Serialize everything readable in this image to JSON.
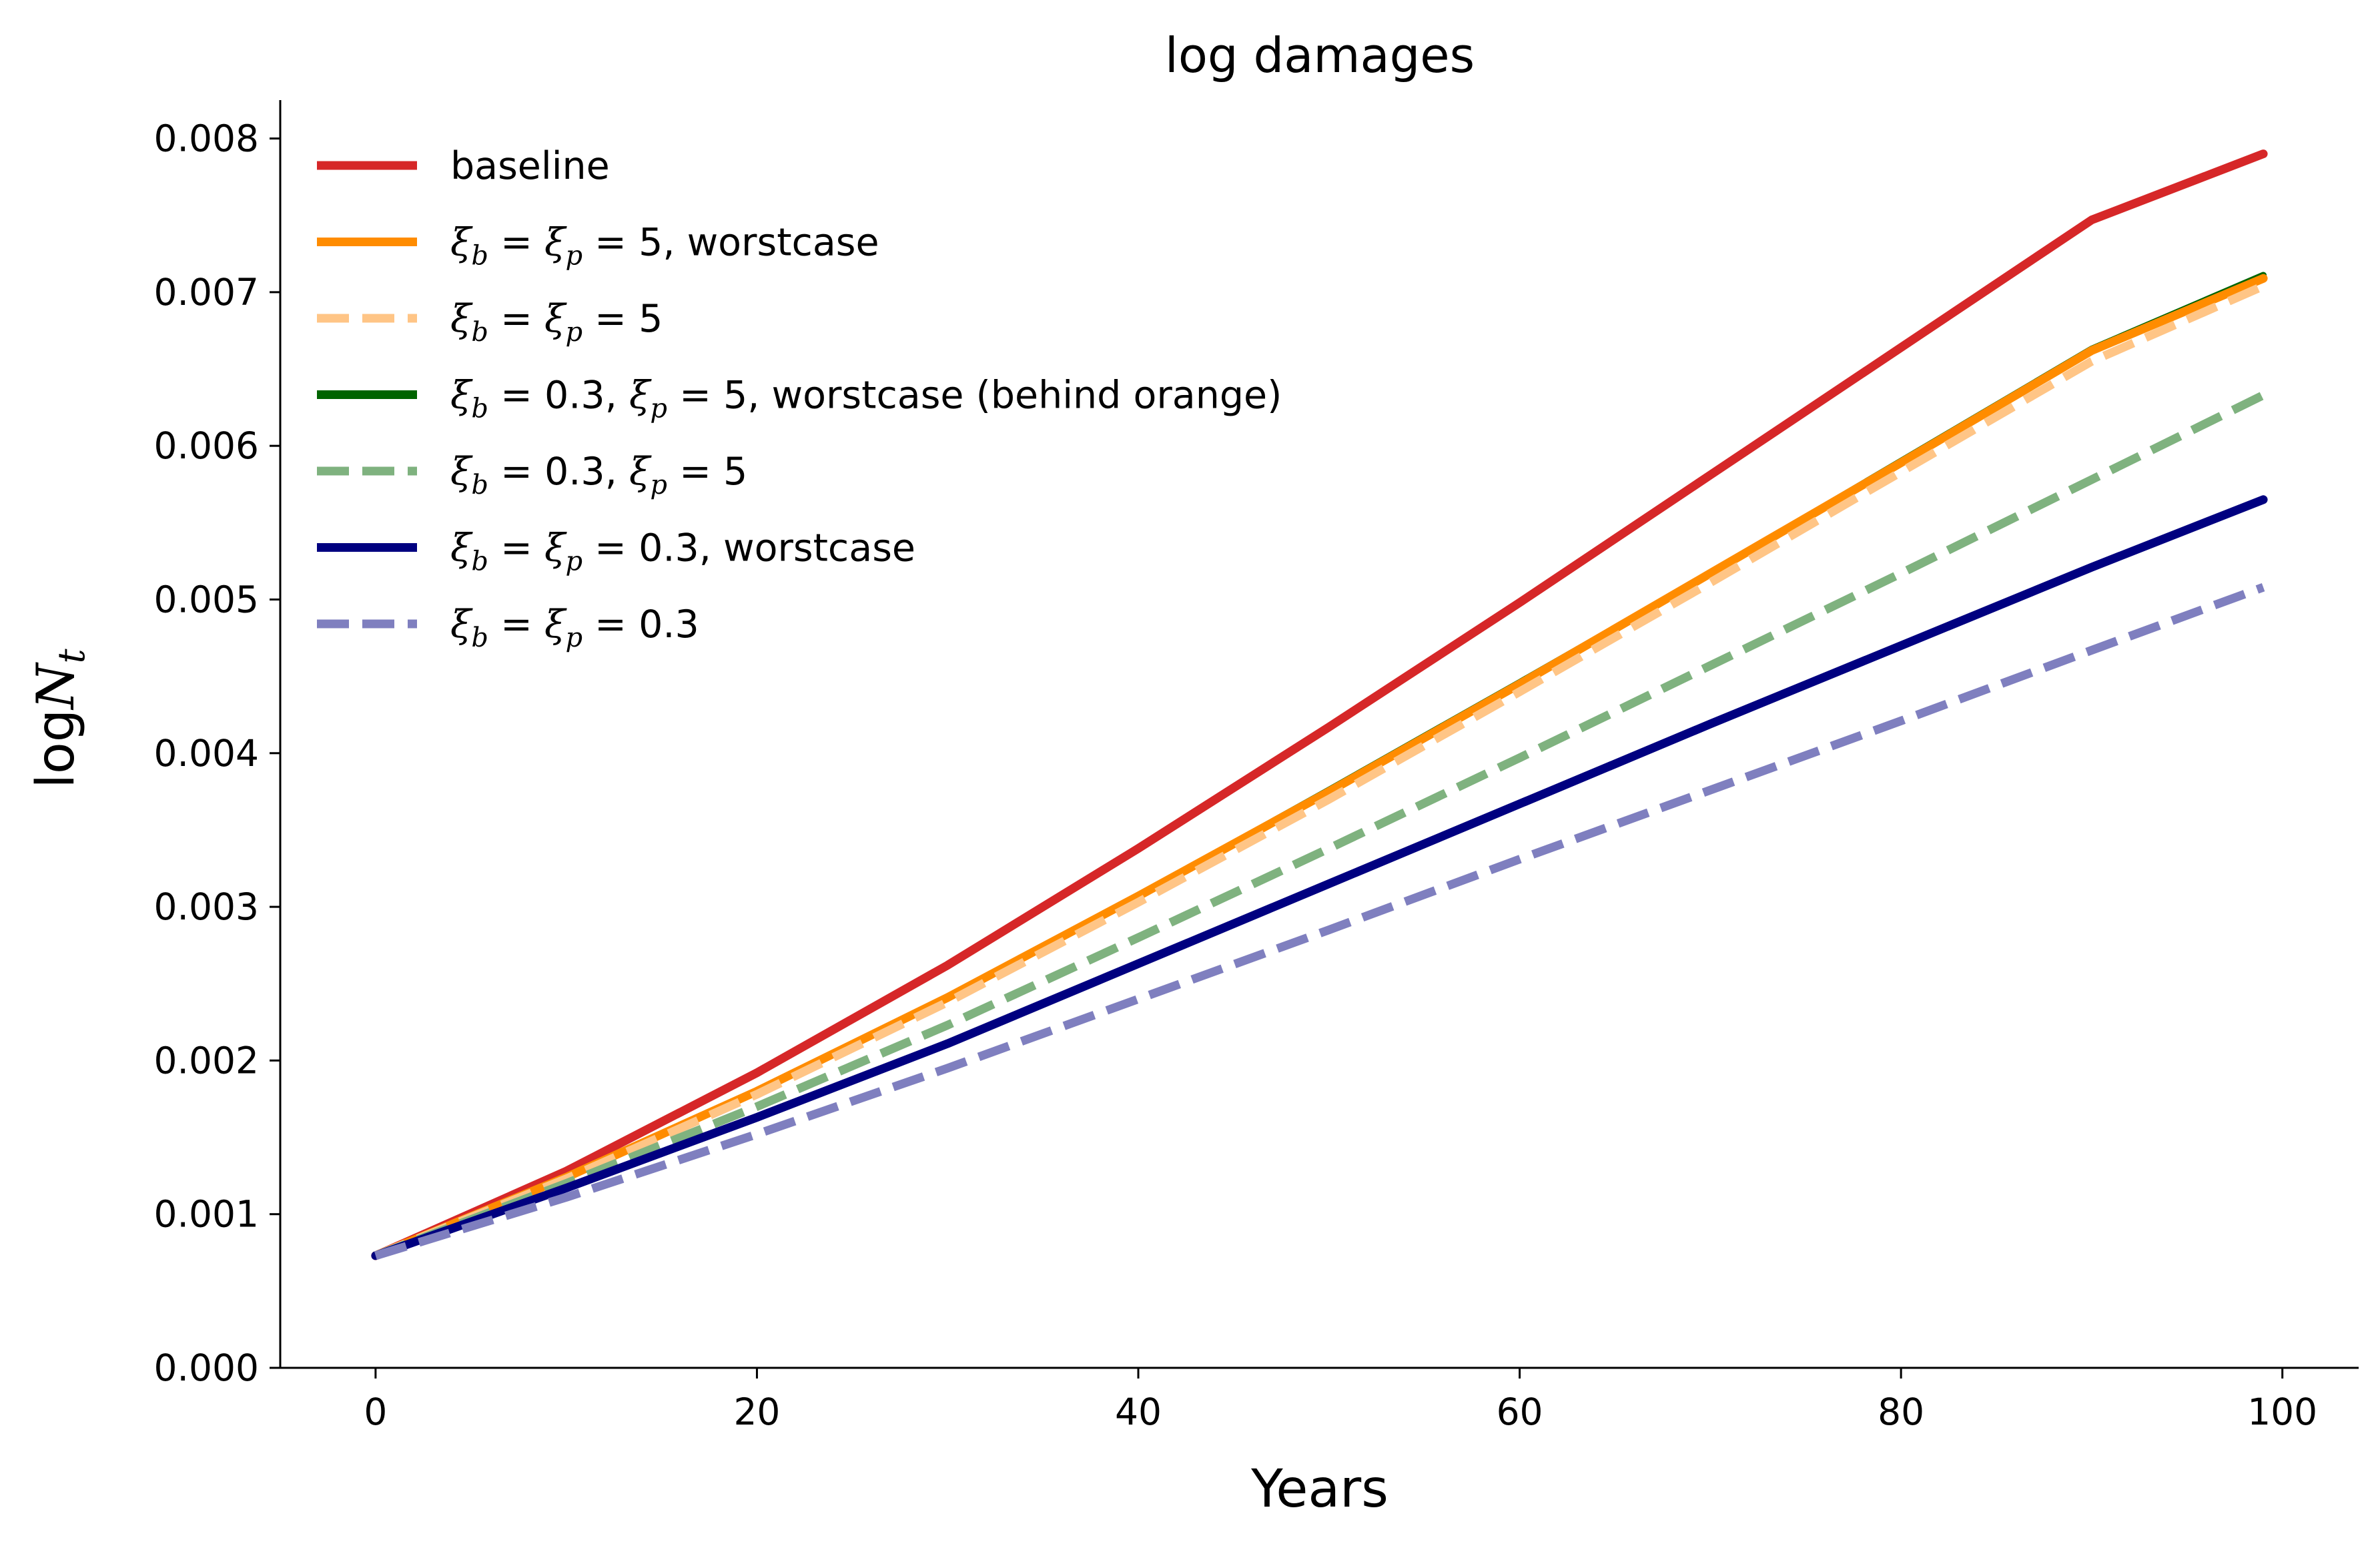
{
  "chart_data": {
    "type": "line",
    "title": "log damages",
    "xlabel": "Years",
    "ylabel": "logN_t",
    "xlim": [
      -5,
      104
    ],
    "ylim": [
      0,
      0.00825
    ],
    "xticks": [
      0,
      20,
      40,
      60,
      80,
      100
    ],
    "xtick_labels": [
      "0",
      "20",
      "40",
      "60",
      "80",
      "100"
    ],
    "yticks": [
      0,
      0.001,
      0.002,
      0.003,
      0.004,
      0.005,
      0.006,
      0.007,
      0.008
    ],
    "ytick_labels": [
      "0.000",
      "0.001",
      "0.002",
      "0.003",
      "0.004",
      "0.005",
      "0.006",
      "0.007",
      "0.008"
    ],
    "grid": false,
    "legend_position": "top-left",
    "x": [
      0,
      10,
      20,
      30,
      40,
      50,
      60,
      70,
      80,
      90,
      99
    ],
    "series": [
      {
        "name": "baseline",
        "color": "#d62728",
        "style": "solid",
        "values": [
          0.00073,
          0.00128,
          0.00192,
          0.00262,
          0.00338,
          0.00417,
          0.00498,
          0.00581,
          0.00664,
          0.00747,
          0.0079
        ]
      },
      {
        "name": "ξ_b = ξ_p = 5, worstcase",
        "color": "#ff8c00",
        "style": "solid",
        "values": [
          0.00073,
          0.00124,
          0.0018,
          0.00241,
          0.00307,
          0.00375,
          0.00445,
          0.00517,
          0.00589,
          0.00662,
          0.00709
        ]
      },
      {
        "name": "ξ_b = ξ_p = 5",
        "color": "#ffc586",
        "style": "dashed",
        "values": [
          0.00073,
          0.00123,
          0.00178,
          0.00238,
          0.00303,
          0.0037,
          0.0044,
          0.00511,
          0.00583,
          0.00655,
          0.00704
        ]
      },
      {
        "name": "ξ_b = 0.3, ξ_p = 5, worstcase (behind orange)",
        "color": "#006400",
        "style": "solid",
        "values": [
          0.00073,
          0.00124,
          0.0018,
          0.00241,
          0.00307,
          0.00376,
          0.00446,
          0.00517,
          0.0059,
          0.00663,
          0.00711
        ]
      },
      {
        "name": "ξ_b = 0.3, ξ_p = 5",
        "color": "#7fb27f",
        "style": "dashed",
        "values": [
          0.00073,
          0.0012,
          0.0017,
          0.00223,
          0.0028,
          0.00338,
          0.00397,
          0.00457,
          0.00517,
          0.00578,
          0.00633
        ]
      },
      {
        "name": "ξ_b = ξ_p = 0.3, worstcase",
        "color": "#000080",
        "style": "solid",
        "values": [
          0.00073,
          0.00117,
          0.00163,
          0.00211,
          0.00263,
          0.00315,
          0.00367,
          0.00419,
          0.0047,
          0.00521,
          0.00565
        ]
      },
      {
        "name": "ξ_b = ξ_p = 0.3",
        "color": "#7f7fbf",
        "style": "dashed",
        "values": [
          0.00073,
          0.00111,
          0.00152,
          0.00195,
          0.0024,
          0.00285,
          0.00331,
          0.00376,
          0.00421,
          0.00467,
          0.00508
        ]
      }
    ]
  }
}
